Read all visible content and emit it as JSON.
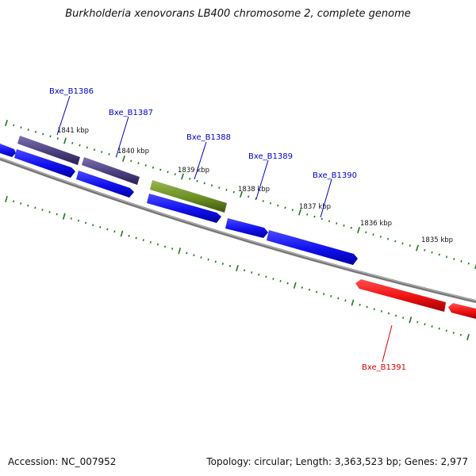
{
  "title": "Burkholderia xenovorans LB400 chromosome 2, complete genome",
  "footer": {
    "accession": "Accession: NC_007952",
    "summary": "Topology: circular; Length: 3,363,523 bp; Genes: 2,977"
  },
  "colors": {
    "forward_cds": "#1010ee",
    "selected": "#6b8e23",
    "dark_gene": "#4a4080",
    "reverse_cds": "#ee1010",
    "tick": "#1a7a1a",
    "backbone": "#808080",
    "forward_label": "#0000cc",
    "reverse_label": "#dd0000"
  },
  "ticks": [
    {
      "label": "1841 kbp"
    },
    {
      "label": "1840 kbp"
    },
    {
      "label": "1839 kbp"
    },
    {
      "label": "1838 kbp"
    },
    {
      "label": "1837 kbp"
    },
    {
      "label": "1836 kbp"
    },
    {
      "label": "1835 kbp"
    }
  ],
  "genes": [
    {
      "label": "Bxe_B1386"
    },
    {
      "label": "Bxe_B1387"
    },
    {
      "label": "Bxe_B1388"
    },
    {
      "label": "Bxe_B1389"
    },
    {
      "label": "Bxe_B1390"
    },
    {
      "label": "Bxe_B1391"
    }
  ]
}
